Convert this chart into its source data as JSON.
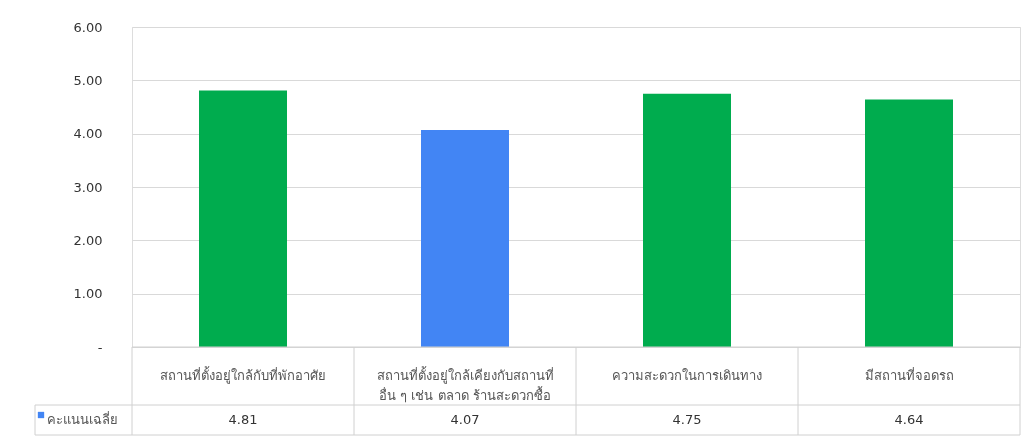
{
  "chart_data": {
    "type": "bar",
    "categories": [
      "สถานที่ตั้งอยู่ใกล้กับที่พักอาศัย",
      "สถานที่ตั้งอยู่ใกล้เคียงกับสถานที่ อื่น ๆ เช่น ตลาด ร้านสะดวกซื้อ",
      "ความสะดวกในการเดินทาง",
      "มีสถานที่จอดรถ"
    ],
    "series": [
      {
        "name": "คะแนนเฉลี่ย",
        "color": "#4285f4",
        "colors": [
          "#00ac4e",
          "#4285f4",
          "#00ac4e",
          "#00ac4e"
        ],
        "values": [
          4.81,
          4.07,
          4.75,
          4.64
        ]
      }
    ],
    "ylim": [
      0,
      6
    ],
    "yticks": [
      {
        "value": 0,
        "label": "-"
      },
      {
        "value": 1,
        "label": "1.00"
      },
      {
        "value": 2,
        "label": "2.00"
      },
      {
        "value": 3,
        "label": "3.00"
      },
      {
        "value": 4,
        "label": "4.00"
      },
      {
        "value": 5,
        "label": "5.00"
      },
      {
        "value": 6,
        "label": "6.00"
      }
    ],
    "grid": "y",
    "legend": "bottom",
    "data_labels": true
  }
}
